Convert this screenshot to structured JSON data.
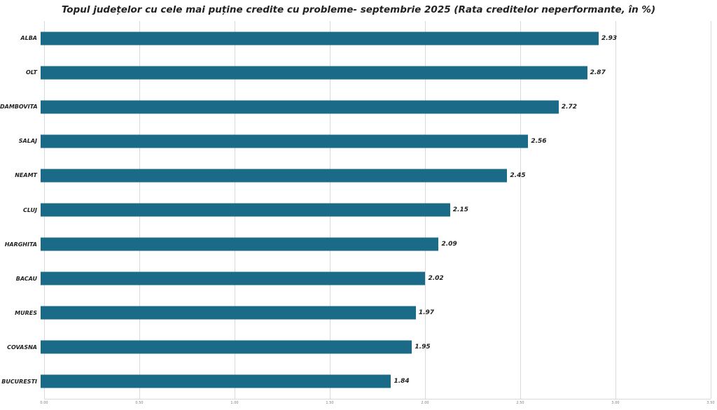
{
  "chart_data": {
    "type": "bar",
    "orientation": "horizontal",
    "title": "Topul județelor cu cele mai puține credite cu probleme- septembrie 2025 (Rata creditelor neperformante, în %)",
    "categories": [
      "ALBA",
      "OLT",
      "DAMBOVITA",
      "SALAJ",
      "NEAMT",
      "CLUJ",
      "HARGHITA",
      "BACAU",
      "MURES",
      "COVASNA",
      "BUCURESTI"
    ],
    "values": [
      2.93,
      2.87,
      2.72,
      2.56,
      2.45,
      2.15,
      2.09,
      2.02,
      1.97,
      1.95,
      1.84
    ],
    "value_labels": [
      "2.93",
      "2.87",
      "2.72",
      "2.56",
      "2.45",
      "2.15",
      "2.09",
      "2.02",
      "1.97",
      "1.95",
      "1.84"
    ],
    "xlabel": "",
    "ylabel": "",
    "xlim": [
      0,
      3.5
    ],
    "ticks": [
      0,
      0.5,
      1,
      1.5,
      2,
      2.5,
      3,
      3.5
    ],
    "tick_labels": [
      "0.00",
      "0.50",
      "1.00",
      "1.50",
      "2.00",
      "2.50",
      "3.00",
      "3.50"
    ],
    "grid": true,
    "legend": false,
    "bar_color": "#1b6b88",
    "label_color": "#222222",
    "grid_color": "#d9d9d9"
  }
}
